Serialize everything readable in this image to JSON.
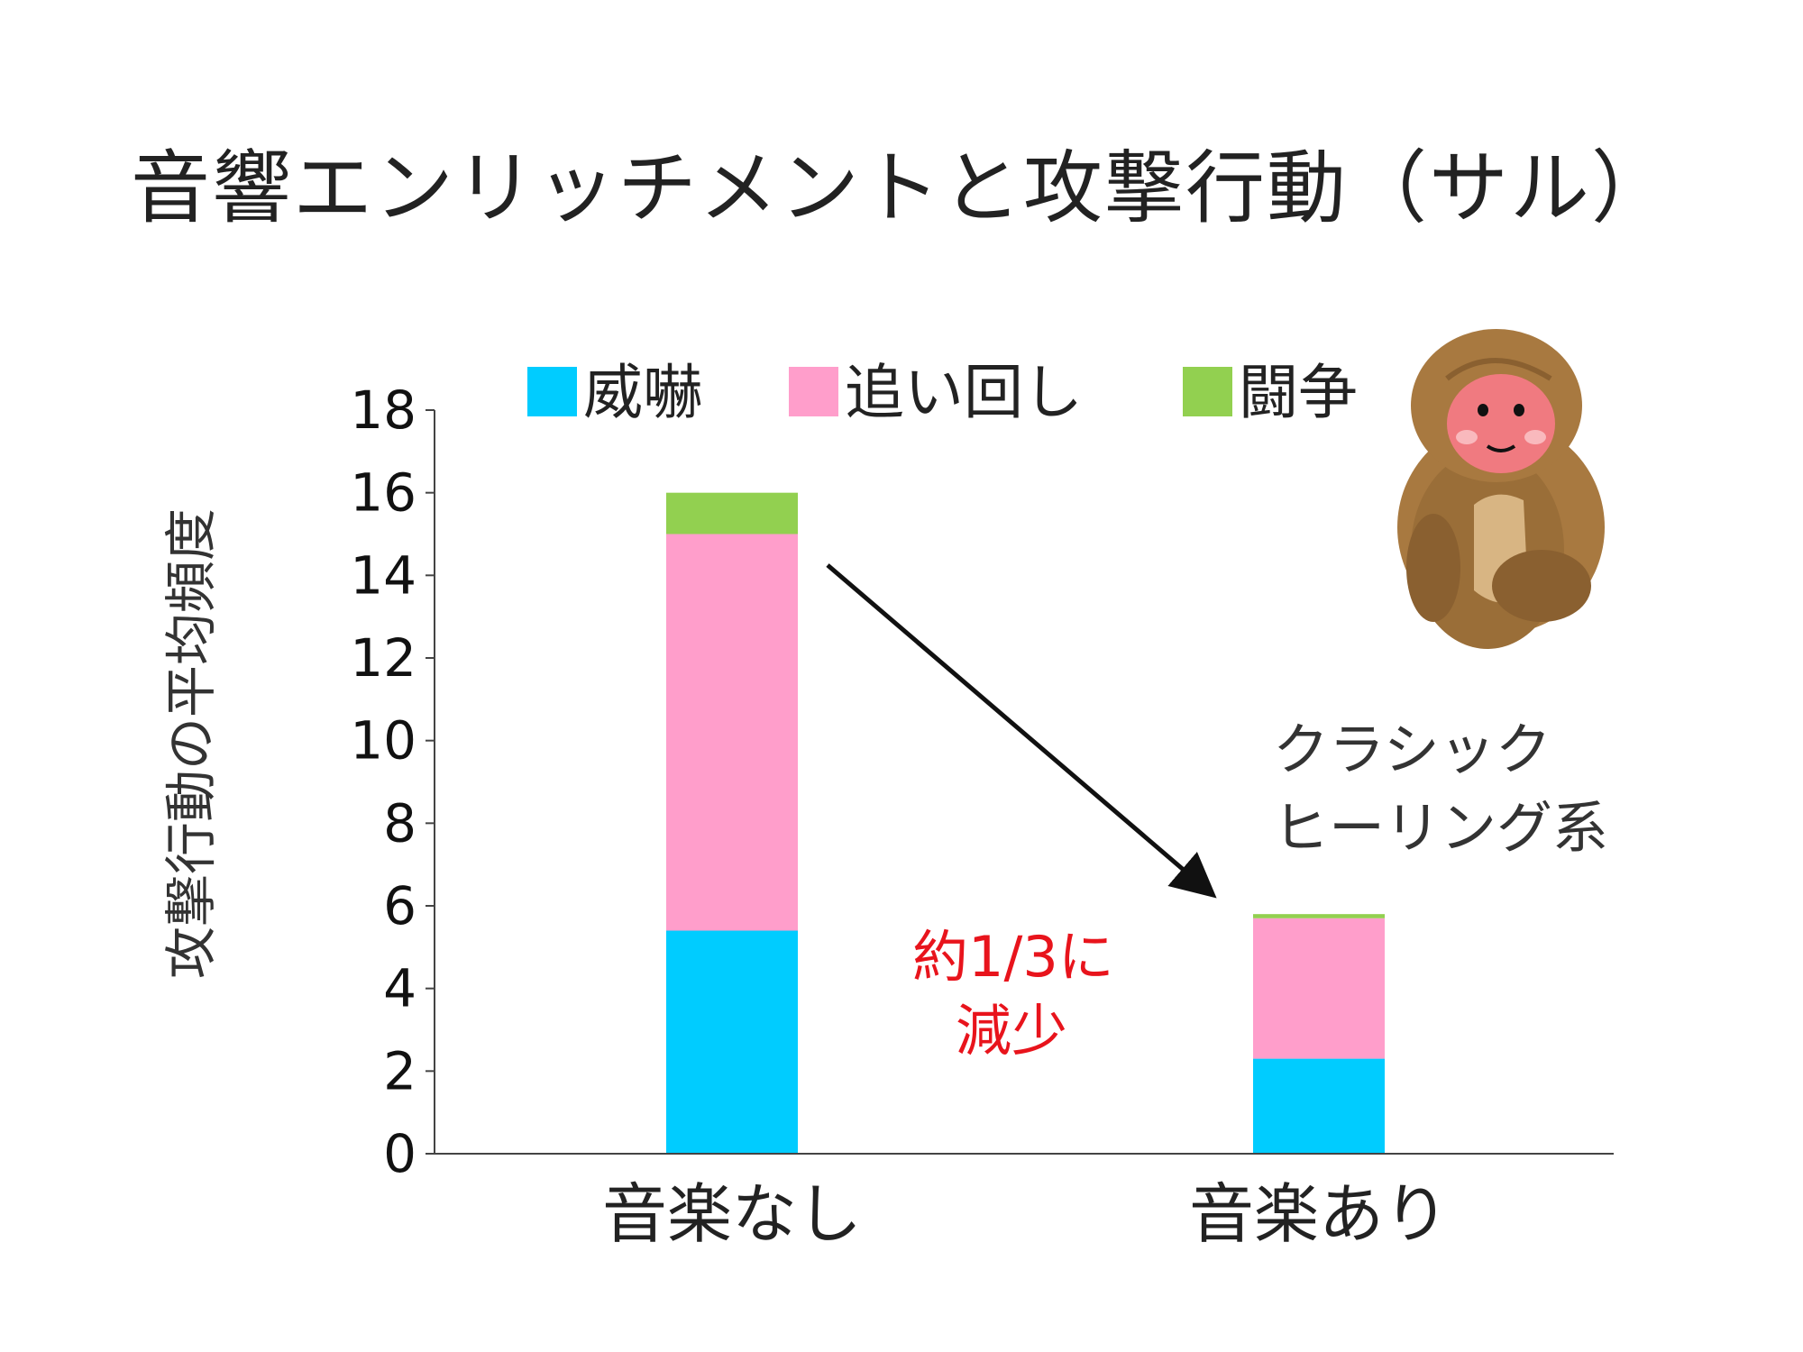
{
  "title": "音響エンリッチメントと攻撃行動（サル）",
  "chart_data": {
    "type": "bar",
    "stacked": true,
    "categories": [
      "音楽なし",
      "音楽あり"
    ],
    "series": [
      {
        "name": "威嚇",
        "color": "#00ccff",
        "values": [
          5.4,
          2.3
        ]
      },
      {
        "name": "追い回し",
        "color": "#ff9ecb",
        "values": [
          9.6,
          3.4
        ]
      },
      {
        "name": "闘争",
        "color": "#92d050",
        "values": [
          1.0,
          0.1
        ]
      }
    ],
    "ylabel": "攻撃行動の平均頻度",
    "xlabel": "",
    "ylim": [
      0,
      18
    ],
    "yticks": [
      0,
      2,
      4,
      6,
      8,
      10,
      12,
      14,
      16,
      18
    ],
    "legend": "top",
    "grid": false
  },
  "annotations": {
    "reduction_line1": "約1/3に",
    "reduction_line2": "減少",
    "music_type_line1": "クラシック",
    "music_type_line2": "ヒーリング系"
  },
  "illustration": {
    "icon": "monkey-icon"
  }
}
